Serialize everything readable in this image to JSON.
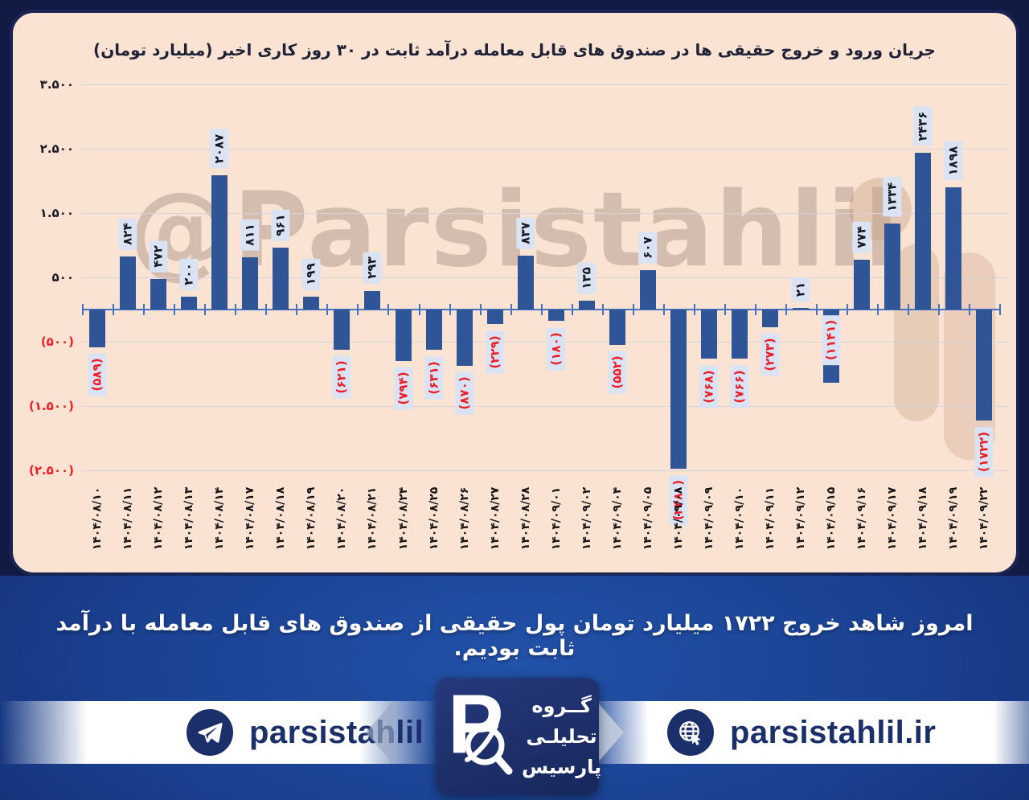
{
  "chart_data": {
    "type": "bar",
    "title": "جریان ورود و خروج حقیقی ها در صندوق های قابل معامله درآمد ثابت در ۳۰ روز کاری اخیر (میلیارد تومان)",
    "watermark": "@Parsistahlil",
    "categories": [
      "۱۴۰۴/۰۸/۱۰",
      "۱۴۰۴/۰۸/۱۱",
      "۱۴۰۴/۰۸/۱۲",
      "۱۴۰۴/۰۸/۱۳",
      "۱۴۰۴/۰۸/۱۴",
      "۱۴۰۴/۰۸/۱۷",
      "۱۴۰۴/۰۸/۱۸",
      "۱۴۰۴/۰۸/۱۹",
      "۱۴۰۴/۰۸/۲۰",
      "۱۴۰۴/۰۸/۲۱",
      "۱۴۰۴/۰۸/۲۴",
      "۱۴۰۴/۰۸/۲۵",
      "۱۴۰۴/۰۸/۲۶",
      "۱۴۰۴/۰۸/۲۷",
      "۱۴۰۴/۰۸/۲۸",
      "۱۴۰۴/۰۹/۰۱",
      "۱۴۰۴/۰۹/۰۲",
      "۱۴۰۴/۰۹/۰۴",
      "۱۴۰۴/۰۹/۰۵",
      "۱۴۰۴/۰۹/۰۸",
      "۱۴۰۴/۰۹/۰۹",
      "۱۴۰۴/۰۹/۱۰",
      "۱۴۰۴/۰۹/۱۱",
      "۱۴۰۴/۰۹/۱۲",
      "۱۴۰۴/۰۹/۱۵",
      "۱۴۰۴/۰۹/۱۶",
      "۱۴۰۴/۰۹/۱۷",
      "۱۴۰۴/۰۹/۱۸",
      "۱۴۰۴/۰۹/۱۹",
      "۱۴۰۴/۰۹/۲۲"
    ],
    "values": [
      -589,
      824,
      472,
      200,
      2087,
      811,
      961,
      199,
      -621,
      293,
      -794,
      -631,
      -870,
      -229,
      837,
      -180,
      135,
      -552,
      607,
      -2480,
      -768,
      -766,
      -273,
      21,
      -1141,
      774,
      1334,
      2436,
      1898,
      -1722
    ],
    "labels": [
      "(۵۸۹)",
      "۸۲۴",
      "۴۷۲",
      "۲۰۰",
      "۲۰۸۷",
      "۸۱۱",
      "۹۶۱",
      "۱۹۹",
      "(۶۲۱)",
      "۲۹۳",
      "(۷۹۴)",
      "(۶۳۱)",
      "(۸۷۰)",
      "(۲۲۹)",
      "۸۳۷",
      "(۱۸۰)",
      "۱۳۵",
      "(۵۵۲)",
      "۶۰۷",
      "(۲۴۸۰)",
      "(۷۶۸)",
      "(۷۶۶)",
      "(۲۷۳)",
      "۲۱",
      "(۱۱۴۱)",
      "۷۷۴",
      "۱۳۳۴",
      "۲۴۳۶",
      "۱۸۹۸",
      "(۱۷۲۲)"
    ],
    "y_axis": {
      "ticks": [
        {
          "value": 3500,
          "label": "۳.۵۰۰"
        },
        {
          "value": 2500,
          "label": "۲.۵۰۰"
        },
        {
          "value": 1500,
          "label": "۱.۵۰۰"
        },
        {
          "value": 500,
          "label": "۵۰۰"
        },
        {
          "value": -500,
          "label": "(۵۰۰)"
        },
        {
          "value": -1500,
          "label": "(۱.۵۰۰)"
        },
        {
          "value": -2500,
          "label": "(۲.۵۰۰)"
        }
      ],
      "ylim": [
        -2900,
        3700
      ]
    },
    "grid": true,
    "legend": false,
    "colors": {
      "bar": "#2f5597",
      "axis": "#4472c4",
      "label_bg": "#d9e3f3",
      "negative": "#ee1c24",
      "positive_text": "#17171f",
      "panel_bg": "#fbe3d3",
      "page_bg": "#101a43",
      "banner_navy": "#1b2f6b"
    }
  },
  "summary": {
    "text": "امروز شاهد خروج ۱۷۲۲ میلیارد تومان پول حقیقی از صندوق های قابل معامله با درآمد ثابت بودیم."
  },
  "footer": {
    "telegram_handle": "parsistahlil",
    "website": "parsistahlil.ir",
    "logo": {
      "letter": "P",
      "lines": [
        "گــروه",
        "تحلیلـی",
        "پارسیس"
      ]
    }
  }
}
